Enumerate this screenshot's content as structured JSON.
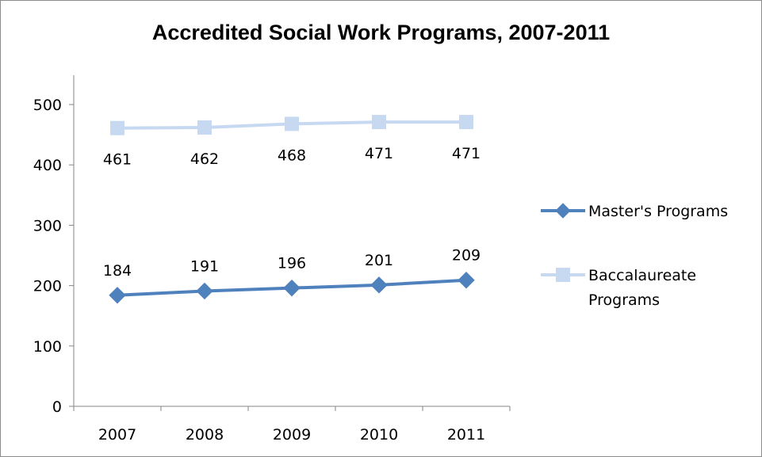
{
  "chart_data": {
    "type": "line",
    "title": "Accredited Social Work Programs, 2007-2011",
    "categories": [
      "2007",
      "2008",
      "2009",
      "2010",
      "2011"
    ],
    "ylim": [
      0,
      500
    ],
    "yticks": [
      0,
      100,
      200,
      300,
      400,
      500
    ],
    "grid": false,
    "legend_position": "right",
    "series": [
      {
        "name": "Master's Programs",
        "values": [
          184,
          191,
          196,
          201,
          209
        ],
        "marker": "diamond",
        "color": "#4f81bd",
        "label_position": "above"
      },
      {
        "name": "Baccalaureate Programs",
        "values": [
          461,
          462,
          468,
          471,
          471
        ],
        "marker": "square",
        "color": "#c6d9f1",
        "label_position": "below"
      }
    ]
  }
}
